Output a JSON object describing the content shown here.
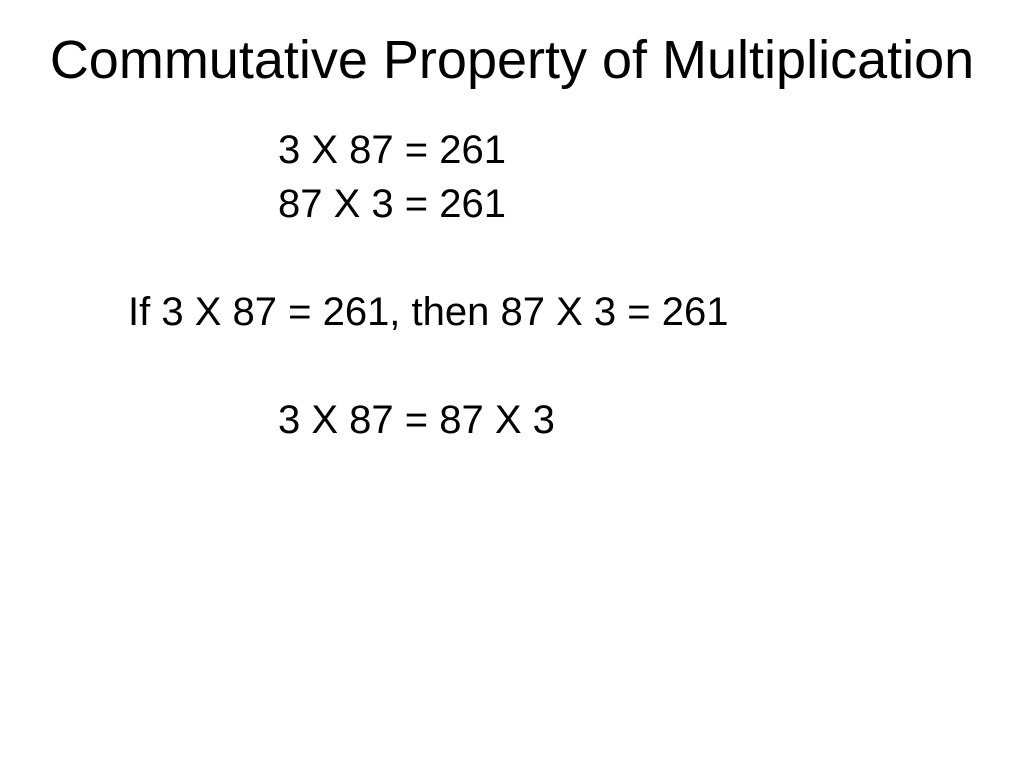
{
  "slide": {
    "title": "Commutative Property of Multiplication",
    "line1": "3 X 87 = 261",
    "line2": "87 X 3 = 261",
    "line3": "If 3 X 87 = 261, then 87 X 3 = 261",
    "line4": "3 X 87 = 87 X 3",
    "title_fontsize": 54,
    "body_fontsize": 40,
    "text_color": "#000000",
    "background_color": "#ffffff",
    "font_family": "Arial"
  }
}
